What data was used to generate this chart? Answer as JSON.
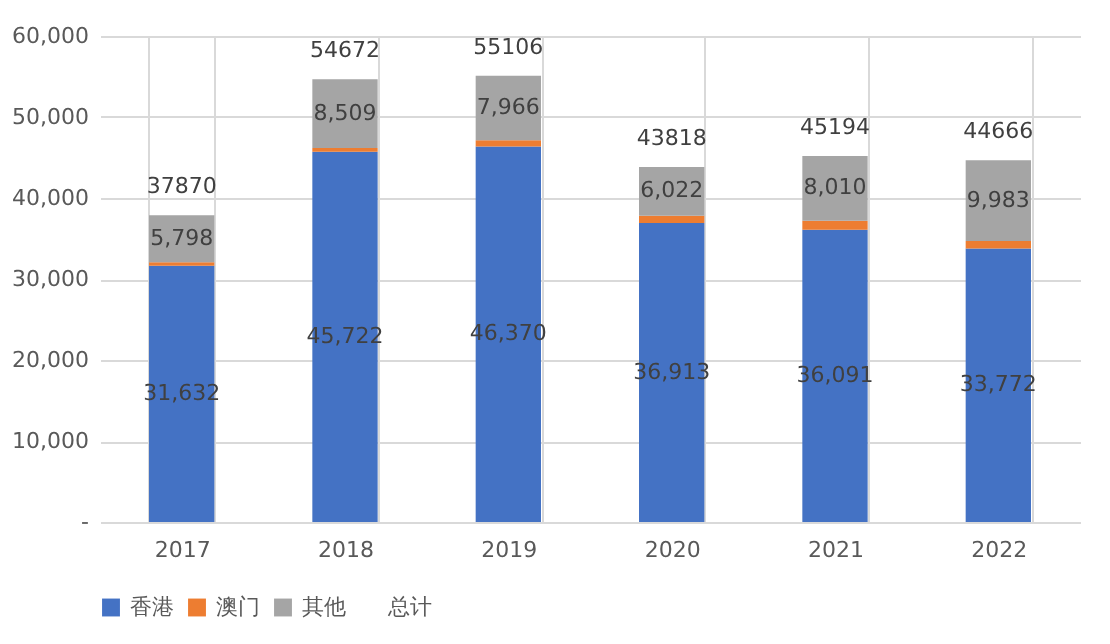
{
  "chart_data": {
    "type": "bar",
    "stacked": true,
    "categories": [
      "2017",
      "2018",
      "2019",
      "2020",
      "2021",
      "2022"
    ],
    "series": [
      {
        "name": "香港",
        "color": "#4472c4",
        "values": [
          31632,
          45722,
          46370,
          36913,
          36091,
          33772
        ],
        "value_labels": [
          "31,632",
          "45,722",
          "46,370",
          "36,913",
          "36,091",
          "33,772"
        ]
      },
      {
        "name": "澳门",
        "color": "#ed7d31",
        "values": [
          440,
          441,
          770,
          883,
          1093,
          911
        ]
      },
      {
        "name": "其他",
        "color": "#a5a5a5",
        "values": [
          5798,
          8509,
          7966,
          6022,
          8010,
          9983
        ],
        "value_labels": [
          "5,798",
          "8,509",
          "7,966",
          "6,022",
          "8,010",
          "9,983"
        ]
      },
      {
        "name": "总计",
        "color": null,
        "values": [
          null,
          null,
          null,
          null,
          null,
          null
        ]
      }
    ],
    "totals": [
      "37870",
      "54672",
      "55106",
      "43818",
      "45194",
      "44666"
    ],
    "ylim": [
      0,
      60000
    ],
    "yticks": [
      {
        "value": 0,
        "label": "-"
      },
      {
        "value": 10000,
        "label": "10,000"
      },
      {
        "value": 20000,
        "label": "20,000"
      },
      {
        "value": 30000,
        "label": "30,000"
      },
      {
        "value": 40000,
        "label": "40,000"
      },
      {
        "value": 50000,
        "label": "50,000"
      },
      {
        "value": 60000,
        "label": "60,000"
      }
    ],
    "grid": true,
    "legend": "bottom"
  }
}
